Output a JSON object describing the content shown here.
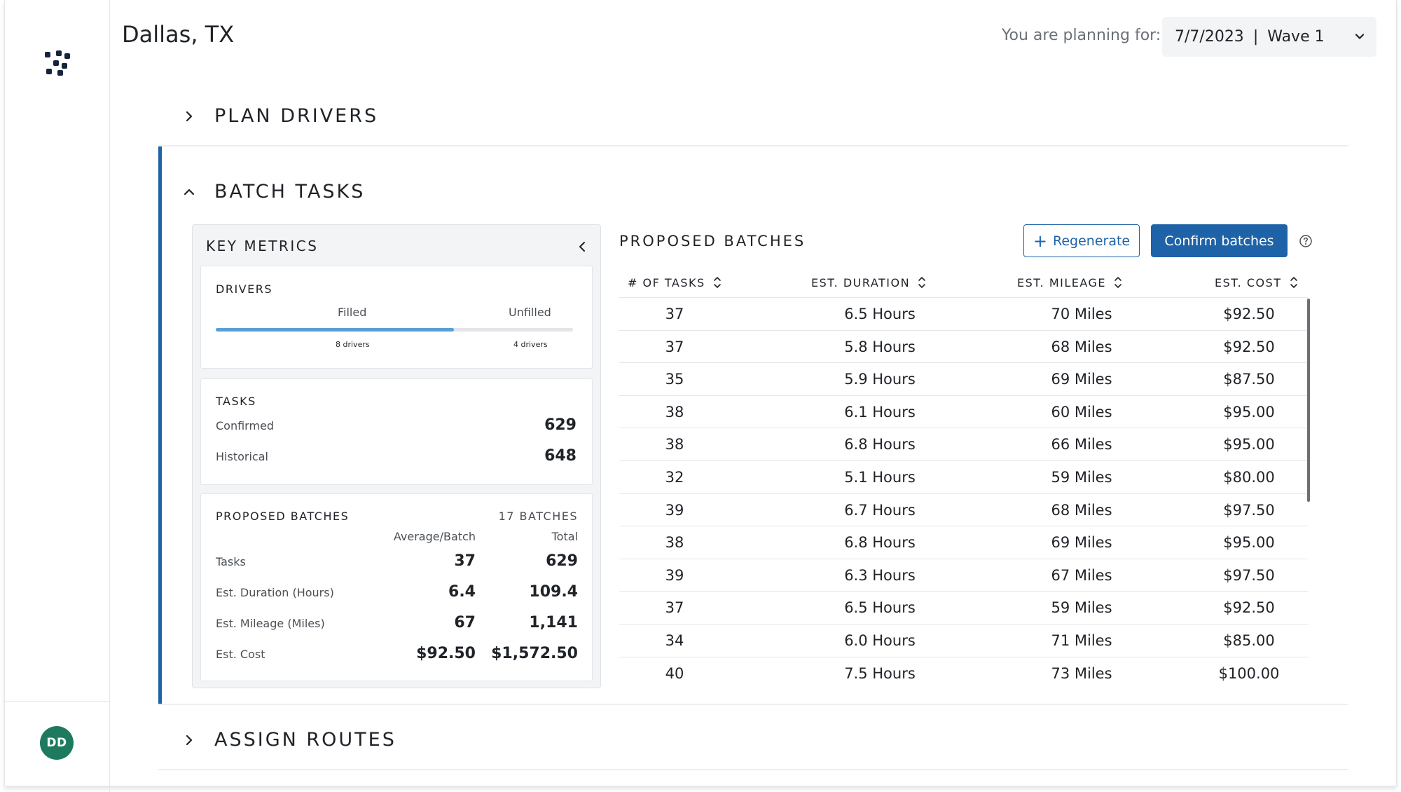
{
  "location": "Dallas, TX",
  "planning": {
    "label": "You are planning for:",
    "date": "7/7/2023",
    "separator": "|",
    "wave": "Wave 1"
  },
  "sections": {
    "plan_drivers": "PLAN DRIVERS",
    "batch_tasks": "BATCH TASKS",
    "assign_routes": "ASSIGN ROUTES"
  },
  "user": {
    "initials": "DD"
  },
  "key_metrics": {
    "title": "KEY METRICS",
    "drivers": {
      "title": "DRIVERS",
      "filled_label": "Filled",
      "unfilled_label": "Unfilled",
      "filled_count": "8 drivers",
      "unfilled_count": "4 drivers",
      "filled_fraction": 0.667
    },
    "tasks": {
      "title": "TASKS",
      "confirmed_label": "Confirmed",
      "confirmed_value": "629",
      "historical_label": "Historical",
      "historical_value": "648"
    },
    "proposed": {
      "title": "PROPOSED BATCHES",
      "batches_count": "17 BATCHES",
      "col_avg": "Average/Batch",
      "col_total": "Total",
      "rows": [
        {
          "label": "Tasks",
          "avg": "37",
          "total": "629"
        },
        {
          "label": "Est. Duration (Hours)",
          "avg": "6.4",
          "total": "109.4"
        },
        {
          "label": "Est. Mileage (Miles)",
          "avg": "67",
          "total": "1,141"
        },
        {
          "label": "Est. Cost",
          "avg": "$92.50",
          "total": "$1,572.50"
        }
      ]
    }
  },
  "batches": {
    "title": "PROPOSED BATCHES",
    "regenerate_label": "Regenerate",
    "confirm_label": "Confirm batches",
    "columns": [
      "# OF TASKS",
      "EST. DURATION",
      "EST. MILEAGE",
      "EST. COST"
    ],
    "rows": [
      [
        "37",
        "6.5 Hours",
        "70 Miles",
        "$92.50"
      ],
      [
        "37",
        "5.8 Hours",
        "68 Miles",
        "$92.50"
      ],
      [
        "35",
        "5.9 Hours",
        "69 Miles",
        "$87.50"
      ],
      [
        "38",
        "6.1 Hours",
        "60 Miles",
        "$95.00"
      ],
      [
        "38",
        "6.8 Hours",
        "66 Miles",
        "$95.00"
      ],
      [
        "32",
        "5.1 Hours",
        "59 Miles",
        "$80.00"
      ],
      [
        "39",
        "6.7 Hours",
        "68 Miles",
        "$97.50"
      ],
      [
        "38",
        "6.8 Hours",
        "69 Miles",
        "$95.00"
      ],
      [
        "39",
        "6.3 Hours",
        "67 Miles",
        "$97.50"
      ],
      [
        "37",
        "6.5 Hours",
        "59 Miles",
        "$92.50"
      ],
      [
        "34",
        "6.0 Hours",
        "71 Miles",
        "$85.00"
      ],
      [
        "40",
        "7.5 Hours",
        "73 Miles",
        "$100.00"
      ]
    ]
  },
  "colors": {
    "accent": "#1e63a8",
    "avatar": "#1d7a5f",
    "progress": "#5a9fd4"
  }
}
